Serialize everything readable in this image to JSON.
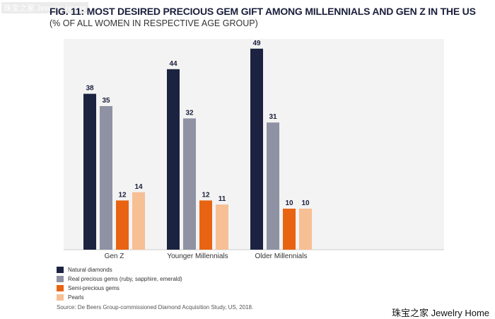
{
  "watermark_top": "珠宝之家 Jewelry Home",
  "watermark_bottom": "珠宝之家  Jewelry Home",
  "chart_data": {
    "type": "bar",
    "title": "FIG. 11: MOST DESIRED PRECIOUS GEM GIFT AMONG MILLENNIALS AND GEN Z IN THE US",
    "subtitle": "(% OF ALL WOMEN IN RESPECTIVE AGE GROUP)",
    "categories": [
      "Gen Z",
      "Younger Millennials",
      "Older Millennials"
    ],
    "series": [
      {
        "name": "Natural diamonds",
        "color": "#1b2340",
        "values": [
          38,
          44,
          49
        ]
      },
      {
        "name": "Real precious gems (ruby, sapphire, emerald)",
        "color": "#8e92a3",
        "values": [
          35,
          32,
          31
        ]
      },
      {
        "name": "Semi-precious gems",
        "color": "#e86412",
        "values": [
          12,
          12,
          10
        ]
      },
      {
        "name": "Pearls",
        "color": "#f6bf94",
        "values": [
          14,
          11,
          10
        ]
      }
    ],
    "ylim": [
      0,
      55
    ],
    "grid": false,
    "legend": "bottom-left",
    "source": "Source: De Beers Group-commissioned Diamond Acquisition Study, US, 2018."
  }
}
